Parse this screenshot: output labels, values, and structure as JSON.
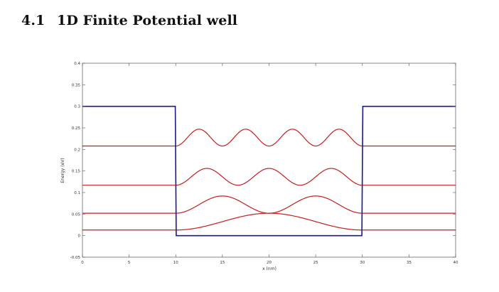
{
  "section": {
    "number": "4.1",
    "title": "1D Finite Potential well"
  },
  "chart_data": {
    "type": "line",
    "title": "",
    "xlabel": "x (nm)",
    "ylabel": "Energy (eV)",
    "xlim": [
      0,
      40
    ],
    "ylim": [
      -0.05,
      0.4
    ],
    "xticks": [
      "0",
      "5",
      "10",
      "15",
      "20",
      "25",
      "30",
      "35",
      "40"
    ],
    "yticks": [
      "-0.05",
      "0",
      "0.05",
      "0.1",
      "0.15",
      "0.2",
      "0.25",
      "0.3",
      "0.35",
      "0.4"
    ],
    "grid": false,
    "legend": "none",
    "potential": {
      "color": "#1a1a8c",
      "x": [
        0,
        9.95,
        10.05,
        29.95,
        30.05,
        40
      ],
      "y": [
        0.3,
        0.3,
        0,
        0,
        0.3,
        0.3
      ]
    },
    "wavefunction_color": "#c41e1e",
    "well": [
      10,
      30
    ],
    "states": [
      {
        "n": 1,
        "energy": 0.013,
        "amplitude": 0.039
      },
      {
        "n": 2,
        "energy": 0.052,
        "amplitude": 0.04
      },
      {
        "n": 3,
        "energy": 0.117,
        "amplitude": 0.039
      },
      {
        "n": 4,
        "energy": 0.208,
        "amplitude": 0.039
      }
    ]
  }
}
